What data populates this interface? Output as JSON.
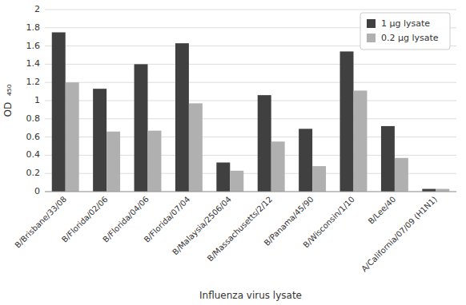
{
  "chart_data": {
    "type": "bar",
    "categories": [
      "B/Brisbane/33/08",
      "B/Florida/02/06",
      "B/Florida/04/06",
      "B/Florida/07/04",
      "B/Malaysia/2506/04",
      "B/Massachusetts/2/12",
      "B/Panama/45/90",
      "B/Wisconsin/1/10",
      "B/Lee/40",
      "A/California/07/09 (H1N1)"
    ],
    "series": [
      {
        "name": "1 μg lysate",
        "color": "#404040",
        "values": [
          1.75,
          1.13,
          1.4,
          1.63,
          0.32,
          1.06,
          0.69,
          1.54,
          0.72,
          0.03
        ]
      },
      {
        "name": "0.2 μg lysate",
        "color": "#b0b0b0",
        "values": [
          1.2,
          0.66,
          0.67,
          0.97,
          0.23,
          0.55,
          0.28,
          1.11,
          0.37,
          0.03
        ]
      }
    ],
    "xlabel": "Influenza virus lysate",
    "ylabel": "OD  ₄₅₀",
    "ylim": [
      0,
      2.0
    ],
    "yticks": [
      0,
      0.2,
      0.4,
      0.6,
      0.8,
      1,
      1.2,
      1.4,
      1.6,
      1.8,
      2
    ],
    "grid": true,
    "legend": "upper right"
  }
}
